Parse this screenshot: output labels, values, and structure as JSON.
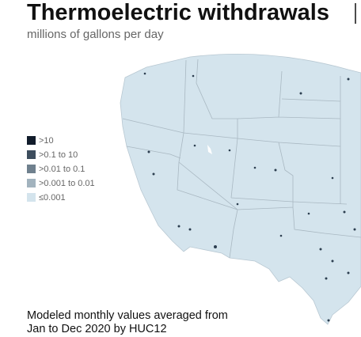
{
  "title": "Thermoelectric withdrawals",
  "subtitle": "millions of gallons per day",
  "legend": [
    {
      "label": ">10",
      "color": "#111c2b"
    },
    {
      "label": ">0.1 to 10",
      "color": "#3d4d5d"
    },
    {
      "label": ">0.01 to 0.1",
      "color": "#6f808e"
    },
    {
      "label": ">0.001 to 0.01",
      "color": "#a2b3be"
    },
    {
      "label": "≤0.001",
      "color": "#d4e4ed"
    }
  ],
  "note": [
    "Modeled monthly values averaged from",
    "Jan to Dec 2020 by HUC12"
  ]
}
